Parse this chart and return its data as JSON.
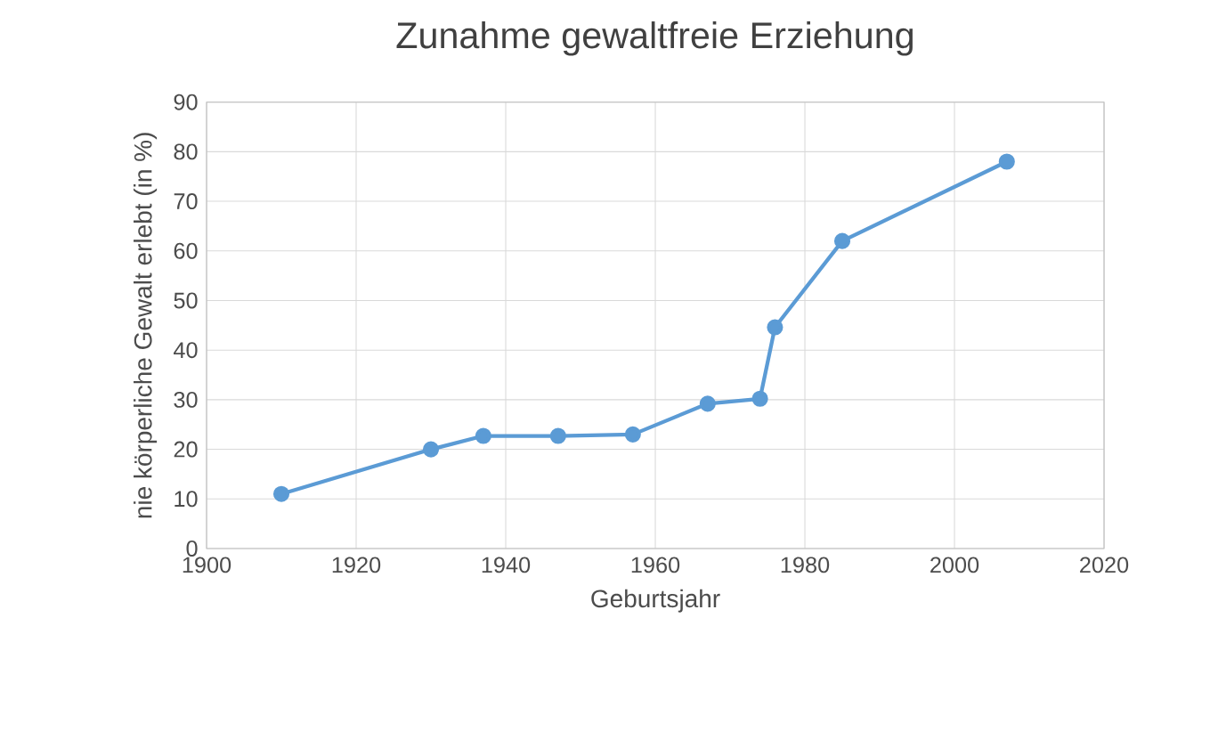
{
  "chart_data": {
    "type": "line",
    "title": "Zunahme gewaltfreie Erziehung",
    "xlabel": "Geburtsjahr",
    "ylabel": "nie körperliche Gewalt erlebt (in %)",
    "x": [
      1910,
      1930,
      1937,
      1947,
      1957,
      1967,
      1974,
      1976,
      1985,
      2007
    ],
    "series": [
      {
        "color": "#5b9bd5",
        "values": [
          11,
          20,
          22.7,
          22.7,
          23,
          29.2,
          30.2,
          44.6,
          62,
          78
        ]
      }
    ],
    "xlim": [
      1900,
      2020
    ],
    "xticks": [
      1900,
      1920,
      1940,
      1960,
      1980,
      2000,
      2020
    ],
    "ylim": [
      0,
      90
    ],
    "yticks": [
      0,
      10,
      20,
      30,
      40,
      50,
      60,
      70,
      80,
      90
    ],
    "grid": true,
    "marker": "circle",
    "line_style": "solid"
  }
}
